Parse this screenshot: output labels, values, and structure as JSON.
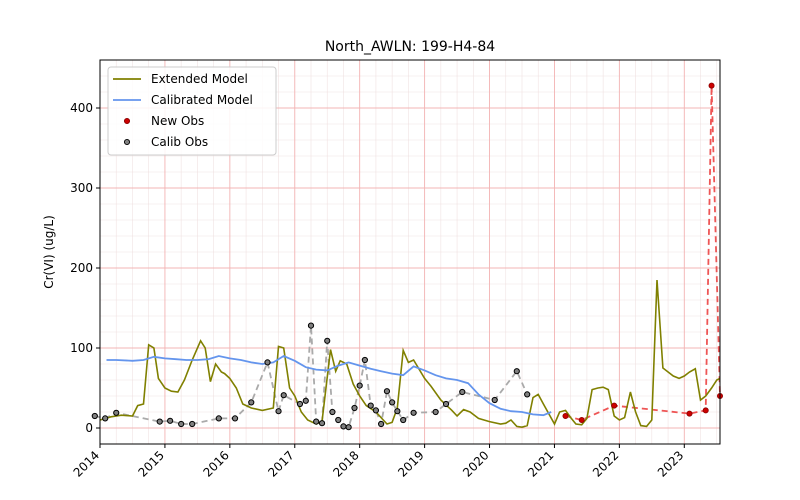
{
  "chart_data": {
    "type": "line",
    "title": "North_AWLN: 199-H4-84",
    "xlabel": "",
    "ylabel": "Cr(VI) (ug/L)",
    "xlim": [
      2014.0,
      2023.55
    ],
    "ylim": [
      -20,
      460
    ],
    "x_ticks": [
      2014,
      2015,
      2016,
      2017,
      2018,
      2019,
      2020,
      2021,
      2022,
      2023
    ],
    "y_ticks": [
      0,
      100,
      200,
      300,
      400
    ],
    "grid": true,
    "legend_position": "upper-left",
    "colors": {
      "extended": "#808000",
      "calibrated": "#6495ED",
      "new_obs": "#cc0000",
      "calib_obs": "#808080",
      "new_obs_line": "#ee5555",
      "calib_obs_line": "#aaaaaa"
    },
    "series": [
      {
        "name": "Extended Model",
        "kind": "line",
        "x": [
          2014.0,
          2014.17,
          2014.33,
          2014.5,
          2014.58,
          2014.67,
          2014.75,
          2014.83,
          2014.9,
          2015.0,
          2015.1,
          2015.2,
          2015.3,
          2015.42,
          2015.55,
          2015.62,
          2015.7,
          2015.78,
          2015.87,
          2015.92,
          2016.0,
          2016.1,
          2016.2,
          2016.33,
          2016.5,
          2016.67,
          2016.75,
          2016.83,
          2016.92,
          2017.0,
          2017.1,
          2017.2,
          2017.33,
          2017.42,
          2017.55,
          2017.63,
          2017.7,
          2017.8,
          2017.9,
          2018.0,
          2018.1,
          2018.25,
          2018.42,
          2018.5,
          2018.58,
          2018.67,
          2018.75,
          2018.83,
          2019.0,
          2019.1,
          2019.25,
          2019.42,
          2019.5,
          2019.6,
          2019.7,
          2019.83,
          2020.0,
          2020.17,
          2020.25,
          2020.33,
          2020.42,
          2020.5,
          2020.58,
          2020.67,
          2020.75,
          2020.83,
          2021.0,
          2021.08,
          2021.17,
          2021.25,
          2021.33,
          2021.42,
          2021.5,
          2021.58,
          2021.67,
          2021.75,
          2021.83,
          2021.92,
          2022.0,
          2022.08,
          2022.17,
          2022.25,
          2022.33,
          2022.42,
          2022.5,
          2022.58,
          2022.67,
          2022.75,
          2022.83,
          2022.92,
          2023.0,
          2023.08,
          2023.17,
          2023.25,
          2023.33,
          2023.42,
          2023.5,
          2023.55
        ],
        "y": [
          10,
          14,
          16,
          15,
          28,
          30,
          104,
          100,
          62,
          50,
          46,
          45,
          60,
          85,
          109,
          100,
          58,
          80,
          70,
          68,
          62,
          50,
          30,
          25,
          22,
          25,
          102,
          100,
          50,
          40,
          20,
          10,
          5,
          8,
          98,
          71,
          84,
          80,
          55,
          40,
          28,
          20,
          5,
          7,
          25,
          97,
          82,
          85,
          62,
          52,
          35,
          22,
          15,
          23,
          20,
          12,
          8,
          5,
          6,
          10,
          2,
          1,
          3,
          38,
          42,
          30,
          5,
          20,
          22,
          13,
          5,
          4,
          12,
          48,
          50,
          51,
          48,
          15,
          10,
          13,
          45,
          20,
          3,
          2,
          10,
          185,
          75,
          70,
          65,
          62,
          65,
          70,
          74,
          35,
          40,
          50,
          60,
          62
        ]
      },
      {
        "name": "Calibrated Model",
        "kind": "line",
        "x": [
          2014.1,
          2014.25,
          2014.5,
          2014.67,
          2014.83,
          2015.0,
          2015.17,
          2015.33,
          2015.5,
          2015.67,
          2015.83,
          2016.0,
          2016.17,
          2016.33,
          2016.5,
          2016.67,
          2016.83,
          2017.0,
          2017.17,
          2017.33,
          2017.5,
          2017.67,
          2017.83,
          2018.0,
          2018.17,
          2018.33,
          2018.5,
          2018.67,
          2018.83,
          2019.0,
          2019.17,
          2019.33,
          2019.5,
          2019.67,
          2019.83,
          2020.0,
          2020.17,
          2020.33,
          2020.5,
          2020.67,
          2020.83,
          2020.95
        ],
        "y": [
          85,
          85,
          84,
          85,
          89,
          87,
          86,
          85,
          85,
          86,
          90,
          87,
          85,
          82,
          80,
          82,
          90,
          84,
          76,
          73,
          72,
          78,
          82,
          78,
          74,
          71,
          68,
          66,
          77,
          72,
          66,
          62,
          60,
          56,
          42,
          31,
          24,
          21,
          20,
          17,
          16,
          20
        ]
      },
      {
        "name": "New Obs",
        "kind": "scatter-dashed",
        "x": [
          2021.17,
          2021.42,
          2021.92,
          2023.08,
          2023.33,
          2023.42,
          2023.55
        ],
        "y": [
          15,
          10,
          28,
          18,
          22,
          428,
          40
        ]
      },
      {
        "name": "Calib Obs",
        "kind": "scatter-dashed",
        "x": [
          2013.92,
          2014.08,
          2014.25,
          2014.92,
          2015.08,
          2015.25,
          2015.42,
          2015.83,
          2016.08,
          2016.33,
          2016.58,
          2016.75,
          2016.83,
          2017.08,
          2017.17,
          2017.25,
          2017.33,
          2017.42,
          2017.5,
          2017.58,
          2017.67,
          2017.75,
          2017.83,
          2017.92,
          2018.0,
          2018.08,
          2018.17,
          2018.25,
          2018.33,
          2018.42,
          2018.5,
          2018.58,
          2018.67,
          2018.83,
          2019.17,
          2019.33,
          2019.58,
          2020.08,
          2020.42,
          2020.58
        ],
        "y": [
          15,
          12,
          19,
          8,
          9,
          5,
          5,
          12,
          12,
          32,
          82,
          21,
          41,
          30,
          34,
          128,
          8,
          6,
          109,
          20,
          10,
          2,
          1,
          25,
          53,
          85,
          28,
          22,
          5,
          46,
          32,
          21,
          10,
          19,
          20,
          30,
          45,
          35,
          71,
          42
        ]
      }
    ]
  }
}
